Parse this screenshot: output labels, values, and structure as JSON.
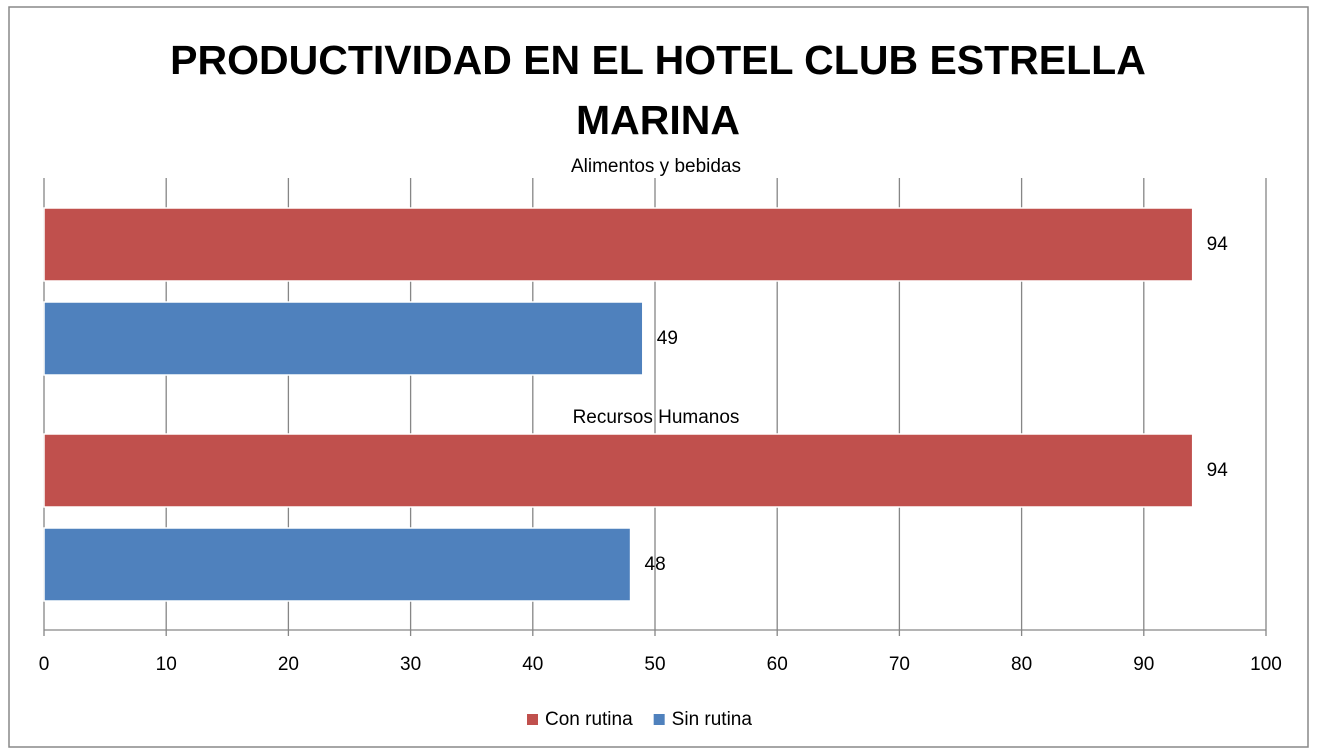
{
  "chart_data": {
    "type": "bar",
    "orientation": "horizontal",
    "title": "PRODUCTIVIDAD EN EL HOTEL CLUB ESTRELLA MARINA",
    "categories": [
      "Alimentos y bebidas",
      "Recursos Humanos"
    ],
    "series": [
      {
        "name": "Con rutina",
        "color": "#c0504d",
        "values": [
          94,
          94
        ]
      },
      {
        "name": "Sin rutina",
        "color": "#4f81bd",
        "values": [
          49,
          48
        ]
      }
    ],
    "xlim": [
      0,
      100
    ],
    "xticks": [
      0,
      10,
      20,
      30,
      40,
      50,
      60,
      70,
      80,
      90,
      100
    ],
    "grid": true,
    "legend": "bottom"
  }
}
